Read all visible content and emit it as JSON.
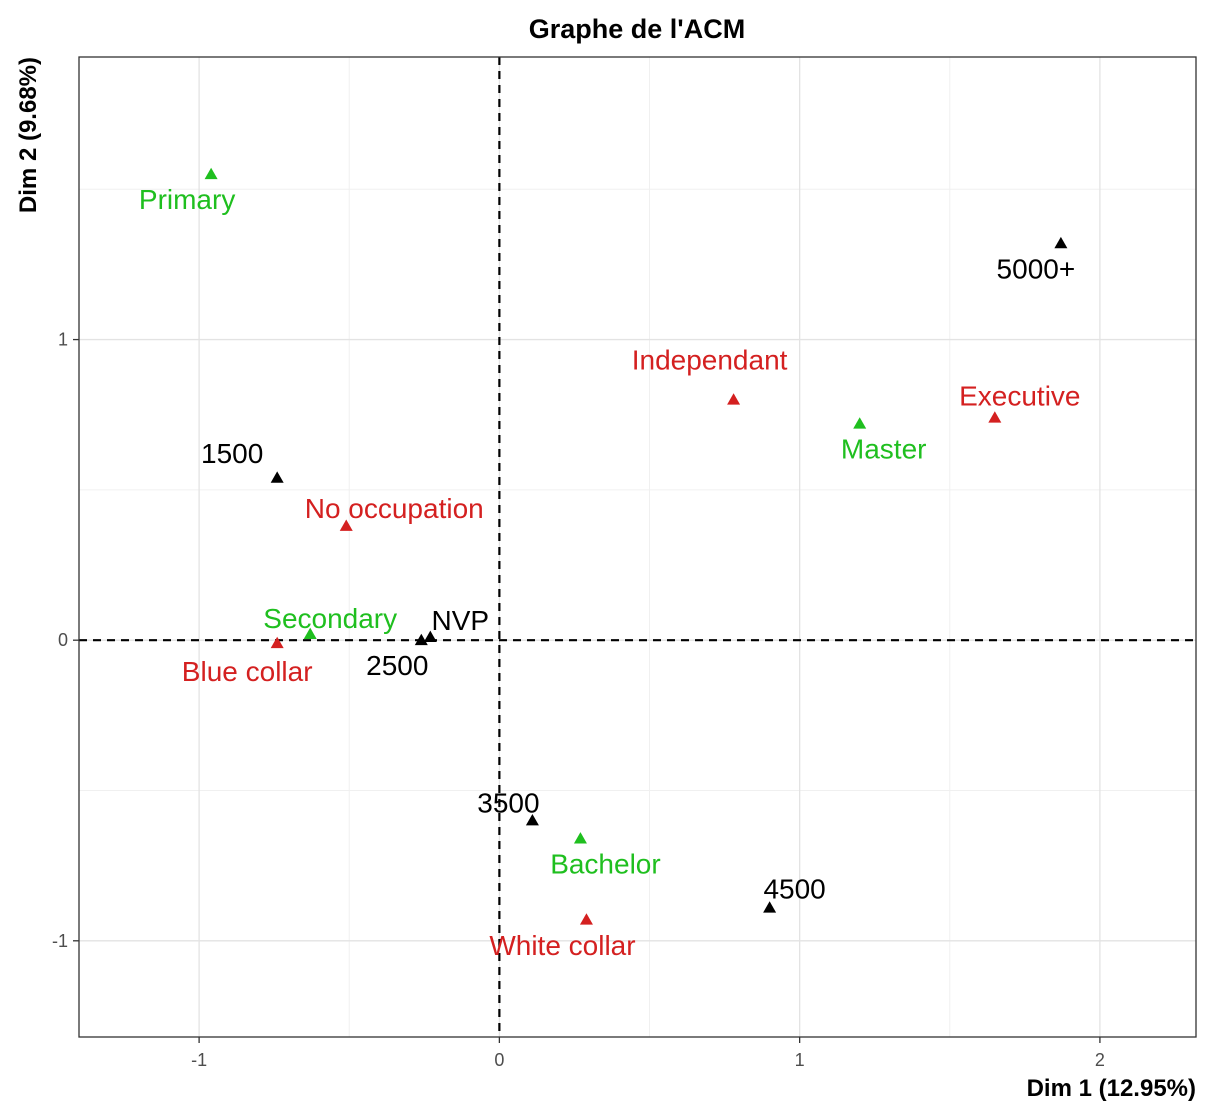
{
  "chart_data": {
    "type": "scatter",
    "title": "Graphe de l'ACM",
    "xlabel": "Dim 1 (12.95%)",
    "ylabel": "Dim 2 (9.68%)",
    "xlim": [
      -1.4,
      2.32
    ],
    "ylim": [
      -1.32,
      1.94
    ],
    "x_ticks": [
      -1,
      0,
      1,
      2
    ],
    "y_ticks": [
      -1,
      0,
      1
    ],
    "x_tick_labels": [
      "-1",
      "0",
      "1",
      "2"
    ],
    "y_tick_labels": [
      "-1",
      "0",
      "1"
    ],
    "grid": true,
    "reference_lines": {
      "x": 0,
      "y": 0,
      "style": "dashed"
    },
    "colors": {
      "income": "#000000",
      "education": "#1fbf1f",
      "occupation": "#d42020"
    },
    "points": [
      {
        "label": "Primary",
        "x": -0.96,
        "y": 1.55,
        "group": "education"
      },
      {
        "label": "Secondary",
        "x": -0.63,
        "y": 0.02,
        "group": "education"
      },
      {
        "label": "Master",
        "x": 1.2,
        "y": 0.72,
        "group": "education"
      },
      {
        "label": "Bachelor",
        "x": 0.27,
        "y": -0.66,
        "group": "education"
      },
      {
        "label": "Independant",
        "x": 0.78,
        "y": 0.8,
        "group": "occupation"
      },
      {
        "label": "Executive",
        "x": 1.65,
        "y": 0.74,
        "group": "occupation"
      },
      {
        "label": "No occupation",
        "x": -0.51,
        "y": 0.38,
        "group": "occupation"
      },
      {
        "label": "Blue collar",
        "x": -0.74,
        "y": -0.01,
        "group": "occupation"
      },
      {
        "label": "White collar",
        "x": 0.29,
        "y": -0.93,
        "group": "occupation"
      },
      {
        "label": "5000+",
        "x": 1.87,
        "y": 1.32,
        "group": "income"
      },
      {
        "label": "1500",
        "x": -0.74,
        "y": 0.54,
        "group": "income"
      },
      {
        "label": "NVP",
        "x": -0.23,
        "y": 0.01,
        "group": "income"
      },
      {
        "label": "2500",
        "x": -0.26,
        "y": 0.0,
        "group": "income"
      },
      {
        "label": "3500",
        "x": 0.11,
        "y": -0.6,
        "group": "income"
      },
      {
        "label": "4500",
        "x": 0.9,
        "y": -0.89,
        "group": "income"
      }
    ]
  }
}
